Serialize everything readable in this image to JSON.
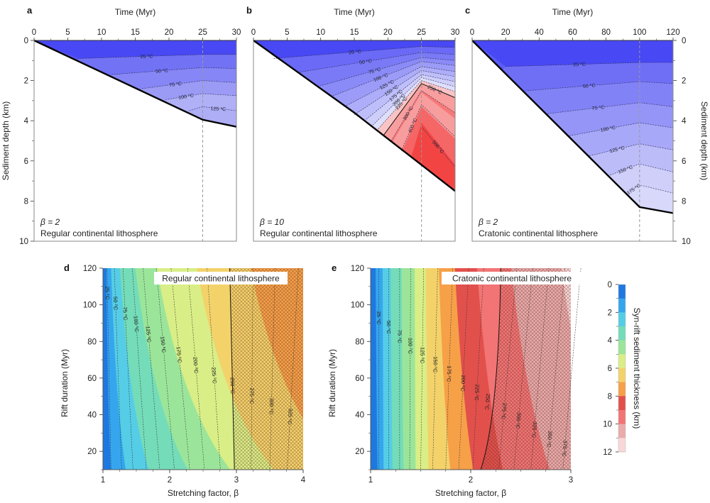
{
  "chart_data": [
    {
      "id": "a",
      "type": "area",
      "panel_label": "a",
      "title": "",
      "xlabel": "Time (Myr)",
      "ylabel": "Sediment depth (km)",
      "xlim": [
        0,
        30
      ],
      "ylim": [
        10,
        0
      ],
      "xticks": [
        "0",
        "5",
        "10",
        "15",
        "20",
        "25",
        "30"
      ],
      "yticks": [
        "0",
        "2",
        "4",
        "6",
        "8",
        "10"
      ],
      "rift_end_time": 25,
      "basement": {
        "x": [
          0,
          25,
          30
        ],
        "y": [
          0,
          3.95,
          4.3
        ]
      },
      "isotherms": [
        {
          "label": "25 °C",
          "x": [
            6.5,
            25,
            30
          ],
          "y": [
            0.9,
            0.7,
            0.7
          ]
        },
        {
          "label": "50 °C",
          "x": [
            11.5,
            25,
            30
          ],
          "y": [
            1.7,
            1.35,
            1.4
          ]
        },
        {
          "label": "75 °C",
          "x": [
            16,
            25,
            30
          ],
          "y": [
            2.4,
            2.0,
            2.1
          ]
        },
        {
          "label": "100 °C",
          "x": [
            19.5,
            25,
            30
          ],
          "y": [
            2.95,
            2.65,
            2.75
          ]
        },
        {
          "label": "125 °C",
          "x": [
            23,
            25,
            30
          ],
          "y": [
            3.5,
            3.3,
            3.5
          ]
        }
      ],
      "annotation": {
        "beta": "β = 2",
        "lithosphere": "Regular continental lithosphere"
      }
    },
    {
      "id": "b",
      "type": "area",
      "panel_label": "b",
      "title": "",
      "xlabel": "Time (Myr)",
      "ylabel": "",
      "xlim": [
        0,
        30
      ],
      "ylim": [
        10,
        0
      ],
      "xticks": [
        "0",
        "5",
        "10",
        "15",
        "20",
        "25",
        "30"
      ],
      "yticks": [],
      "rift_end_time": 25,
      "basement": {
        "x": [
          0,
          5,
          10,
          15,
          20,
          25,
          30
        ],
        "y": [
          0,
          1.2,
          2.4,
          3.6,
          4.9,
          6.2,
          7.5
        ]
      },
      "isotherms": [
        {
          "label": "25 °C",
          "x": [
            3,
            25,
            30
          ],
          "y": [
            0.9,
            0.3,
            0.35
          ]
        },
        {
          "label": "50 °C",
          "x": [
            6.5,
            25,
            30
          ],
          "y": [
            1.6,
            0.6,
            0.7
          ]
        },
        {
          "label": "75 °C",
          "x": [
            9.5,
            25,
            30
          ],
          "y": [
            2.3,
            0.85,
            1.0
          ]
        },
        {
          "label": "100 °C",
          "x": [
            11.5,
            25,
            30
          ],
          "y": [
            2.8,
            1.05,
            1.25
          ]
        },
        {
          "label": "125 °C",
          "x": [
            13.5,
            25,
            30
          ],
          "y": [
            3.3,
            1.3,
            1.55
          ]
        },
        {
          "label": "150 °C",
          "x": [
            15,
            25,
            30
          ],
          "y": [
            3.7,
            1.5,
            1.8
          ]
        },
        {
          "label": "175 °C",
          "x": [
            16.5,
            25,
            30
          ],
          "y": [
            4.0,
            1.7,
            2.05
          ]
        },
        {
          "label": "200 °C",
          "x": [
            17.5,
            25,
            30
          ],
          "y": [
            4.3,
            1.85,
            2.3
          ]
        },
        {
          "label": "225 °C",
          "x": [
            18.3,
            25,
            30
          ],
          "y": [
            4.5,
            2.0,
            2.55
          ]
        },
        {
          "label": "250 °C",
          "x": [
            19.3,
            25,
            30
          ],
          "y": [
            4.75,
            2.15,
            2.85
          ]
        },
        {
          "label": "300 °C",
          "x": [
            20.5,
            25,
            30
          ],
          "y": [
            5.0,
            2.5,
            3.6
          ]
        },
        {
          "label": "400 °C",
          "x": [
            22,
            25,
            30
          ],
          "y": [
            5.5,
            3.2,
            4.8
          ]
        },
        {
          "label": "500 °C",
          "x": [
            25,
            30
          ],
          "y": [
            4.3,
            6.3
          ]
        }
      ],
      "annotation": {
        "beta": "β = 10",
        "lithosphere": "Regular continental lithosphere"
      }
    },
    {
      "id": "c",
      "type": "area",
      "panel_label": "c",
      "title": "",
      "xlabel": "Time (Myr)",
      "ylabel": "Sediment depth (km)",
      "ylabel_side": "right",
      "xlim": [
        0,
        120
      ],
      "ylim": [
        10,
        0
      ],
      "xticks": [
        "0",
        "20",
        "40",
        "60",
        "80",
        "100",
        "120"
      ],
      "yticks": [
        "0",
        "2",
        "4",
        "6",
        "8",
        "10"
      ],
      "rift_end_time": 100,
      "basement": {
        "x": [
          0,
          100,
          120
        ],
        "y": [
          0,
          8.3,
          8.6
        ]
      },
      "isotherms": [
        {
          "label": "25 °C",
          "x": [
            20,
            100,
            120
          ],
          "y": [
            1.3,
            1.1,
            1.1
          ]
        },
        {
          "label": "50 °C",
          "x": [
            33,
            100,
            120
          ],
          "y": [
            2.5,
            2.05,
            2.15
          ]
        },
        {
          "label": "75 °C",
          "x": [
            45,
            100,
            120
          ],
          "y": [
            3.65,
            3.1,
            3.3
          ]
        },
        {
          "label": "100 °C",
          "x": [
            58,
            100,
            120
          ],
          "y": [
            4.75,
            4.1,
            4.35
          ]
        },
        {
          "label": "125 °C",
          "x": [
            70,
            100,
            120
          ],
          "y": [
            5.75,
            5.15,
            5.45
          ]
        },
        {
          "label": "150 °C",
          "x": [
            81,
            100,
            120
          ],
          "y": [
            6.75,
            6.15,
            6.55
          ]
        },
        {
          "label": "175 °C",
          "x": [
            92,
            100,
            120
          ],
          "y": [
            7.65,
            7.2,
            7.6
          ]
        }
      ],
      "annotation": {
        "beta": "β = 2",
        "lithosphere": "Cratonic continental lithosphere"
      }
    },
    {
      "id": "d",
      "type": "heatmap",
      "panel_label": "d",
      "title": "Regular continental lithosphere",
      "xlabel": "Stretching factor, β",
      "ylabel": "Rift duration (Myr)",
      "xlim": [
        1,
        4
      ],
      "ylim": [
        10,
        120
      ],
      "xticks": [
        "1",
        "2",
        "3",
        "4"
      ],
      "yticks": [
        "20",
        "40",
        "60",
        "80",
        "100",
        "120"
      ],
      "thickness_zones": [
        {
          "km": 1,
          "x_at_top": 1.05,
          "x_at_bottom": 1.12
        },
        {
          "km": 2,
          "x_at_top": 1.12,
          "x_at_bottom": 1.35
        },
        {
          "km": 3,
          "x_at_top": 1.25,
          "x_at_bottom": 1.7
        },
        {
          "km": 4,
          "x_at_top": 1.48,
          "x_at_bottom": 2.3
        },
        {
          "km": 5,
          "x_at_top": 1.8,
          "x_at_bottom": 2.95
        },
        {
          "km": 6,
          "x_at_top": 2.4,
          "x_at_bottom": 3.6
        },
        {
          "km": 7,
          "x_at_top": 3.2,
          "x_at_bottom": 4.6
        }
      ],
      "isotherms": [
        {
          "label": "25 °C",
          "x_at_top": 1.06,
          "x_at_bottom": 1.12
        },
        {
          "label": "50 °C",
          "x_at_top": 1.17,
          "x_at_bottom": 1.28
        },
        {
          "label": "75 °C",
          "x_at_top": 1.3,
          "x_at_bottom": 1.45
        },
        {
          "label": "100 °C",
          "x_at_top": 1.44,
          "x_at_bottom": 1.65
        },
        {
          "label": "125 °C",
          "x_at_top": 1.6,
          "x_at_bottom": 1.85
        },
        {
          "label": "150 °C",
          "x_at_top": 1.8,
          "x_at_bottom": 2.07
        },
        {
          "label": "175 °C",
          "x_at_top": 2.02,
          "x_at_bottom": 2.3
        },
        {
          "label": "200 °C",
          "x_at_top": 2.27,
          "x_at_bottom": 2.52
        },
        {
          "label": "225 °C",
          "x_at_top": 2.56,
          "x_at_bottom": 2.76
        },
        {
          "label": "250 °C",
          "x_at_top": 2.9,
          "x_at_bottom": 2.97
        },
        {
          "label": "275 °C",
          "x_at_top": 3.25,
          "x_at_bottom": 3.22
        },
        {
          "label": "300 °C",
          "x_at_top": 3.58,
          "x_at_bottom": 3.5
        },
        {
          "label": "325 °C",
          "x_at_top": 3.93,
          "x_at_bottom": 3.76
        }
      ],
      "hatched_region": "beta > ~2.95 (beyond 250 °C isotherm)"
    },
    {
      "id": "e",
      "type": "heatmap",
      "panel_label": "e",
      "title": "Cratonic continental lithosphere",
      "xlabel": "Stretching factor, β",
      "ylabel": "Rift duration (Myr)",
      "xlim": [
        1,
        3
      ],
      "ylim": [
        10,
        120
      ],
      "xticks": [
        "1",
        "2",
        "3"
      ],
      "yticks": [
        "20",
        "40",
        "60",
        "80",
        "100",
        "120"
      ],
      "thickness_zones": [
        {
          "km": 1,
          "x_at_top": 1.05,
          "x_at_bottom": 1.07
        },
        {
          "km": 2,
          "x_at_top": 1.12,
          "x_at_bottom": 1.13
        },
        {
          "km": 3,
          "x_at_top": 1.2,
          "x_at_bottom": 1.22
        },
        {
          "km": 4,
          "x_at_top": 1.31,
          "x_at_bottom": 1.33
        },
        {
          "km": 5,
          "x_at_top": 1.44,
          "x_at_bottom": 1.45
        },
        {
          "km": 6,
          "x_at_top": 1.55,
          "x_at_bottom": 1.58
        },
        {
          "km": 7,
          "x_at_top": 1.68,
          "x_at_bottom": 1.8
        },
        {
          "km": 8,
          "x_at_top": 1.84,
          "x_at_bottom": 2.03
        },
        {
          "km": 9,
          "x_at_top": 2.06,
          "x_at_bottom": 2.33
        },
        {
          "km": 10,
          "x_at_top": 2.4,
          "x_at_bottom": 2.8
        },
        {
          "km": 11,
          "x_at_top": 2.9,
          "x_at_bottom": 3.4
        }
      ],
      "isotherms": [
        {
          "label": "25 °C",
          "x_at_top": 1.08,
          "x_at_bottom": 1.08
        },
        {
          "label": "50 °C",
          "x_at_top": 1.18,
          "x_at_bottom": 1.18
        },
        {
          "label": "75 °C",
          "x_at_top": 1.29,
          "x_at_bottom": 1.29
        },
        {
          "label": "100 °C",
          "x_at_top": 1.4,
          "x_at_bottom": 1.39
        },
        {
          "label": "125 °C",
          "x_at_top": 1.53,
          "x_at_bottom": 1.5
        },
        {
          "label": "150 °C",
          "x_at_top": 1.67,
          "x_at_bottom": 1.62
        },
        {
          "label": "175 °C",
          "x_at_top": 1.82,
          "x_at_bottom": 1.75
        },
        {
          "label": "200 °C",
          "x_at_top": 1.98,
          "x_at_bottom": 1.88
        },
        {
          "label": "225 °C",
          "x_at_top": 2.13,
          "x_at_bottom": 2.02
        },
        {
          "label": "250 °C",
          "x_at_top": 2.3,
          "x_at_bottom": 2.1
        },
        {
          "label": "275 °C",
          "x_at_top": 2.46,
          "x_at_bottom": 2.28
        },
        {
          "label": "300 °C",
          "x_at_top": 2.62,
          "x_at_bottom": 2.43
        },
        {
          "label": "325 °C",
          "x_at_top": 2.78,
          "x_at_bottom": 2.6
        },
        {
          "label": "350 °C",
          "x_at_top": 2.94,
          "x_at_bottom": 2.76
        },
        {
          "label": "375 °C",
          "x_at_top": 3.1,
          "x_at_bottom": 2.92
        }
      ],
      "hatched_region": "beta > ~2.3 (beyond 250 °C isotherm)"
    },
    {
      "id": "colorbar",
      "type": "legend",
      "label": "Syn-rift sediment thickness (km)",
      "ticks": [
        "0",
        "2",
        "4",
        "6",
        "8",
        "10",
        "12"
      ],
      "range": [
        0,
        12
      ],
      "step_km": 1,
      "colors": [
        "#1f78e0",
        "#35a6ee",
        "#55cde6",
        "#74dcb8",
        "#9be59a",
        "#d9ee86",
        "#f3d26a",
        "#f6a048",
        "#e2504c",
        "#f27474",
        "#eaabab",
        "#f8d7d7"
      ]
    }
  ],
  "colors": {
    "sediment_cold": "#4a4af5",
    "sediment_warm": "#d8d8fb",
    "hot": "#f24a4a",
    "basement_line": "#000000",
    "hatch": "#6e3a2a"
  }
}
